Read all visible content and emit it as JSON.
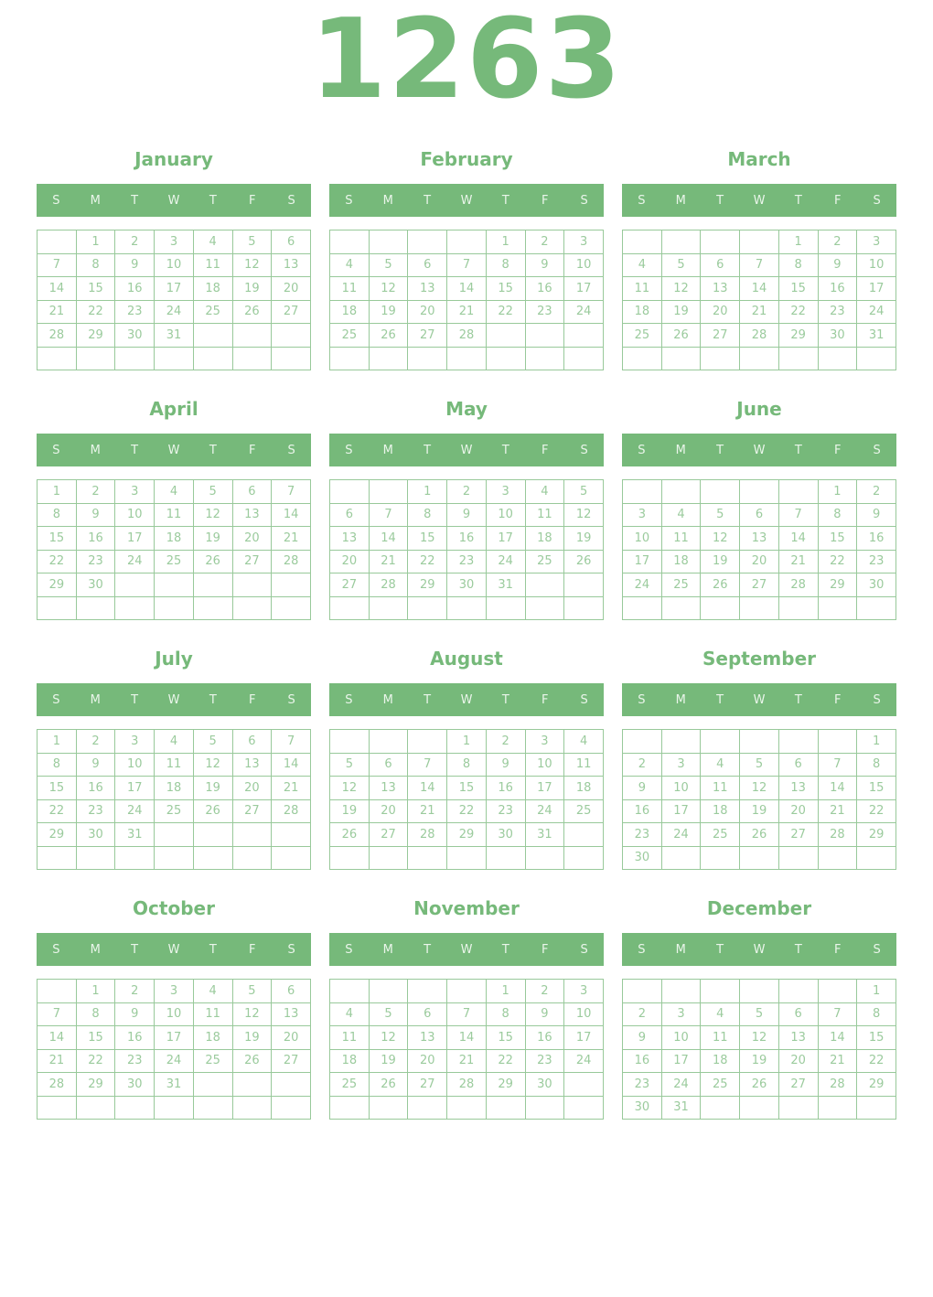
{
  "year": "1263",
  "weekday_headers": [
    "S",
    "M",
    "T",
    "W",
    "T",
    "F",
    "S"
  ],
  "colors": {
    "green_accent": "#76b97a",
    "header_background": "#76b97a",
    "header_text": "#eaf5ea",
    "day_number": "#9bcb9d",
    "grid_border": "#98c99a",
    "page_background": "#ffffff"
  },
  "months": [
    {
      "name": "January",
      "rows": [
        [
          "",
          "1",
          "2",
          "3",
          "4",
          "5",
          "6"
        ],
        [
          "7",
          "8",
          "9",
          "10",
          "11",
          "12",
          "13"
        ],
        [
          "14",
          "15",
          "16",
          "17",
          "18",
          "19",
          "20"
        ],
        [
          "21",
          "22",
          "23",
          "24",
          "25",
          "26",
          "27"
        ],
        [
          "28",
          "29",
          "30",
          "31",
          "",
          "",
          ""
        ],
        [
          "",
          "",
          "",
          "",
          "",
          "",
          ""
        ]
      ]
    },
    {
      "name": "February",
      "rows": [
        [
          "",
          "",
          "",
          "",
          "1",
          "2",
          "3"
        ],
        [
          "4",
          "5",
          "6",
          "7",
          "8",
          "9",
          "10"
        ],
        [
          "11",
          "12",
          "13",
          "14",
          "15",
          "16",
          "17"
        ],
        [
          "18",
          "19",
          "20",
          "21",
          "22",
          "23",
          "24"
        ],
        [
          "25",
          "26",
          "27",
          "28",
          "",
          "",
          ""
        ],
        [
          "",
          "",
          "",
          "",
          "",
          "",
          ""
        ]
      ]
    },
    {
      "name": "March",
      "rows": [
        [
          "",
          "",
          "",
          "",
          "1",
          "2",
          "3"
        ],
        [
          "4",
          "5",
          "6",
          "7",
          "8",
          "9",
          "10"
        ],
        [
          "11",
          "12",
          "13",
          "14",
          "15",
          "16",
          "17"
        ],
        [
          "18",
          "19",
          "20",
          "21",
          "22",
          "23",
          "24"
        ],
        [
          "25",
          "26",
          "27",
          "28",
          "29",
          "30",
          "31"
        ],
        [
          "",
          "",
          "",
          "",
          "",
          "",
          ""
        ]
      ]
    },
    {
      "name": "April",
      "rows": [
        [
          "1",
          "2",
          "3",
          "4",
          "5",
          "6",
          "7"
        ],
        [
          "8",
          "9",
          "10",
          "11",
          "12",
          "13",
          "14"
        ],
        [
          "15",
          "16",
          "17",
          "18",
          "19",
          "20",
          "21"
        ],
        [
          "22",
          "23",
          "24",
          "25",
          "26",
          "27",
          "28"
        ],
        [
          "29",
          "30",
          "",
          "",
          "",
          "",
          ""
        ],
        [
          "",
          "",
          "",
          "",
          "",
          "",
          ""
        ]
      ]
    },
    {
      "name": "May",
      "rows": [
        [
          "",
          "",
          "1",
          "2",
          "3",
          "4",
          "5"
        ],
        [
          "6",
          "7",
          "8",
          "9",
          "10",
          "11",
          "12"
        ],
        [
          "13",
          "14",
          "15",
          "16",
          "17",
          "18",
          "19"
        ],
        [
          "20",
          "21",
          "22",
          "23",
          "24",
          "25",
          "26"
        ],
        [
          "27",
          "28",
          "29",
          "30",
          "31",
          "",
          ""
        ],
        [
          "",
          "",
          "",
          "",
          "",
          "",
          ""
        ]
      ]
    },
    {
      "name": "June",
      "rows": [
        [
          "",
          "",
          "",
          "",
          "",
          "1",
          "2"
        ],
        [
          "3",
          "4",
          "5",
          "6",
          "7",
          "8",
          "9"
        ],
        [
          "10",
          "11",
          "12",
          "13",
          "14",
          "15",
          "16"
        ],
        [
          "17",
          "18",
          "19",
          "20",
          "21",
          "22",
          "23"
        ],
        [
          "24",
          "25",
          "26",
          "27",
          "28",
          "29",
          "30"
        ],
        [
          "",
          "",
          "",
          "",
          "",
          "",
          ""
        ]
      ]
    },
    {
      "name": "July",
      "rows": [
        [
          "1",
          "2",
          "3",
          "4",
          "5",
          "6",
          "7"
        ],
        [
          "8",
          "9",
          "10",
          "11",
          "12",
          "13",
          "14"
        ],
        [
          "15",
          "16",
          "17",
          "18",
          "19",
          "20",
          "21"
        ],
        [
          "22",
          "23",
          "24",
          "25",
          "26",
          "27",
          "28"
        ],
        [
          "29",
          "30",
          "31",
          "",
          "",
          "",
          ""
        ],
        [
          "",
          "",
          "",
          "",
          "",
          "",
          ""
        ]
      ]
    },
    {
      "name": "August",
      "rows": [
        [
          "",
          "",
          "",
          "1",
          "2",
          "3",
          "4"
        ],
        [
          "5",
          "6",
          "7",
          "8",
          "9",
          "10",
          "11"
        ],
        [
          "12",
          "13",
          "14",
          "15",
          "16",
          "17",
          "18"
        ],
        [
          "19",
          "20",
          "21",
          "22",
          "23",
          "24",
          "25"
        ],
        [
          "26",
          "27",
          "28",
          "29",
          "30",
          "31",
          ""
        ],
        [
          "",
          "",
          "",
          "",
          "",
          "",
          ""
        ]
      ]
    },
    {
      "name": "September",
      "rows": [
        [
          "",
          "",
          "",
          "",
          "",
          "",
          "1"
        ],
        [
          "2",
          "3",
          "4",
          "5",
          "6",
          "7",
          "8"
        ],
        [
          "9",
          "10",
          "11",
          "12",
          "13",
          "14",
          "15"
        ],
        [
          "16",
          "17",
          "18",
          "19",
          "20",
          "21",
          "22"
        ],
        [
          "23",
          "24",
          "25",
          "26",
          "27",
          "28",
          "29"
        ],
        [
          "30",
          "",
          "",
          "",
          "",
          "",
          ""
        ]
      ]
    },
    {
      "name": "October",
      "rows": [
        [
          "",
          "1",
          "2",
          "3",
          "4",
          "5",
          "6"
        ],
        [
          "7",
          "8",
          "9",
          "10",
          "11",
          "12",
          "13"
        ],
        [
          "14",
          "15",
          "16",
          "17",
          "18",
          "19",
          "20"
        ],
        [
          "21",
          "22",
          "23",
          "24",
          "25",
          "26",
          "27"
        ],
        [
          "28",
          "29",
          "30",
          "31",
          "",
          "",
          ""
        ],
        [
          "",
          "",
          "",
          "",
          "",
          "",
          ""
        ]
      ]
    },
    {
      "name": "November",
      "rows": [
        [
          "",
          "",
          "",
          "",
          "1",
          "2",
          "3"
        ],
        [
          "4",
          "5",
          "6",
          "7",
          "8",
          "9",
          "10"
        ],
        [
          "11",
          "12",
          "13",
          "14",
          "15",
          "16",
          "17"
        ],
        [
          "18",
          "19",
          "20",
          "21",
          "22",
          "23",
          "24"
        ],
        [
          "25",
          "26",
          "27",
          "28",
          "29",
          "30",
          ""
        ],
        [
          "",
          "",
          "",
          "",
          "",
          "",
          ""
        ]
      ]
    },
    {
      "name": "December",
      "rows": [
        [
          "",
          "",
          "",
          "",
          "",
          "",
          "1"
        ],
        [
          "2",
          "3",
          "4",
          "5",
          "6",
          "7",
          "8"
        ],
        [
          "9",
          "10",
          "11",
          "12",
          "13",
          "14",
          "15"
        ],
        [
          "16",
          "17",
          "18",
          "19",
          "20",
          "21",
          "22"
        ],
        [
          "23",
          "24",
          "25",
          "26",
          "27",
          "28",
          "29"
        ],
        [
          "30",
          "31",
          "",
          "",
          "",
          "",
          ""
        ]
      ]
    }
  ]
}
